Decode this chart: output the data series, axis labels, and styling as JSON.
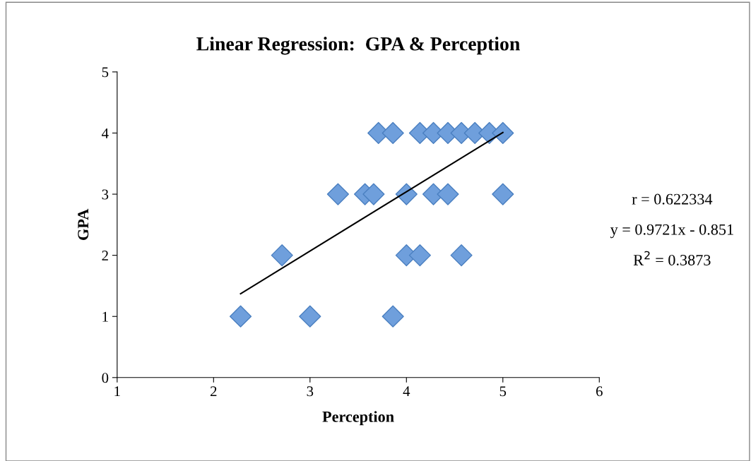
{
  "chart_data": {
    "type": "scatter",
    "title": "Linear Regression:  GPA & Perception",
    "xlabel": "Perception",
    "ylabel": "GPA",
    "xlim": [
      1,
      6
    ],
    "xticks": [
      1,
      2,
      3,
      4,
      5,
      6
    ],
    "ylim": [
      0,
      5
    ],
    "yticks": [
      0,
      1,
      2,
      3,
      4,
      5
    ],
    "grid": false,
    "legend": false,
    "marker": "diamond",
    "series": [
      {
        "color": "#6f9fdc",
        "x": [
          3.71,
          3.86,
          4.14,
          4.28,
          4.43,
          4.57,
          4.71,
          4.86,
          5.0,
          3.29,
          3.57,
          3.66,
          4.0,
          4.28,
          4.43,
          5.0,
          2.71,
          4.0,
          4.14,
          4.57,
          2.28,
          3.0,
          3.86
        ],
        "values": [
          4,
          4,
          4,
          4,
          4,
          4,
          4,
          4,
          4,
          3,
          3,
          3,
          3,
          3,
          3,
          3,
          2,
          2,
          2,
          2,
          1,
          1,
          1
        ]
      },
      {
        "type": "line",
        "color": "#000000",
        "marker": "none",
        "x": [
          2.28,
          5.0
        ],
        "values": [
          1.37,
          4.01
        ]
      }
    ],
    "annotations": [
      "r = 0.622334",
      "y = 0.9721x - 0.851",
      "R$^{2}$ = 0.3873"
    ]
  }
}
